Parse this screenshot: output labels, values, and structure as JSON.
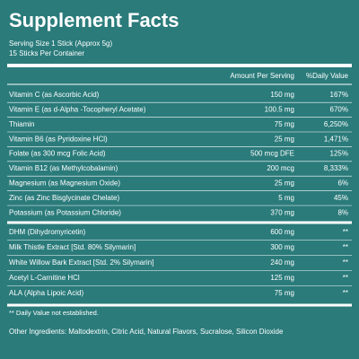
{
  "header": {
    "title": "Supplement Facts",
    "serving_size": "Serving Size 1 Stick (Approx 5g)",
    "servings": "15 Sticks Per Container"
  },
  "table": {
    "header": [
      "Amount Per Serving",
      "%Daily Value"
    ],
    "sections": [
      [
        [
          "Vitamin C (as Ascorbic Acid)",
          "150 mg",
          "167%"
        ],
        [
          "Vitamin E (as d-Alpha -Tocopheryl Acetate)",
          "100.5 mg",
          "670%"
        ],
        [
          "Thiamin",
          "75 mg",
          "6,250%"
        ],
        [
          "Vitamin B6 (as Pyridoxine HCl)",
          "25 mg",
          "1,471%"
        ],
        [
          "Folate (as 300 mcg Folic Acid)",
          "500 mcg DFE",
          "125%"
        ],
        [
          "Vitamin B12 (as Methylcobalamin)",
          "200 mcg",
          "8,333%"
        ],
        [
          "Magnesium (as Magnesium Oxide)",
          "25 mg",
          "6%"
        ],
        [
          "Zinc (as Zinc Bisglycinate Chelate)",
          "5 mg",
          "45%"
        ],
        [
          "Potassium (as Potassium Chloride)",
          "370 mg",
          "8%"
        ]
      ],
      [
        [
          "DHM (Dihydromyricetin)",
          "600 mg",
          "**"
        ],
        [
          "Milk Thistle Extract [Std. 80% Silymarin]",
          "300 mg",
          "**"
        ],
        [
          "White Willow Bark Extract [Std. 2% Silymarin]",
          "240 mg",
          "**"
        ],
        [
          "Acetyl L-Carnitine HCl",
          "125 mg",
          "**"
        ],
        [
          "ALA (Alpha Lipoic Acid)",
          "75 mg",
          "**"
        ]
      ]
    ]
  },
  "footnote": "** Daily Value not established.",
  "other_ingredients": "Other Ingredients: Maltodextrin, Citric Acid, Natural Flavors, Sucralose, Silicon Dioxide"
}
